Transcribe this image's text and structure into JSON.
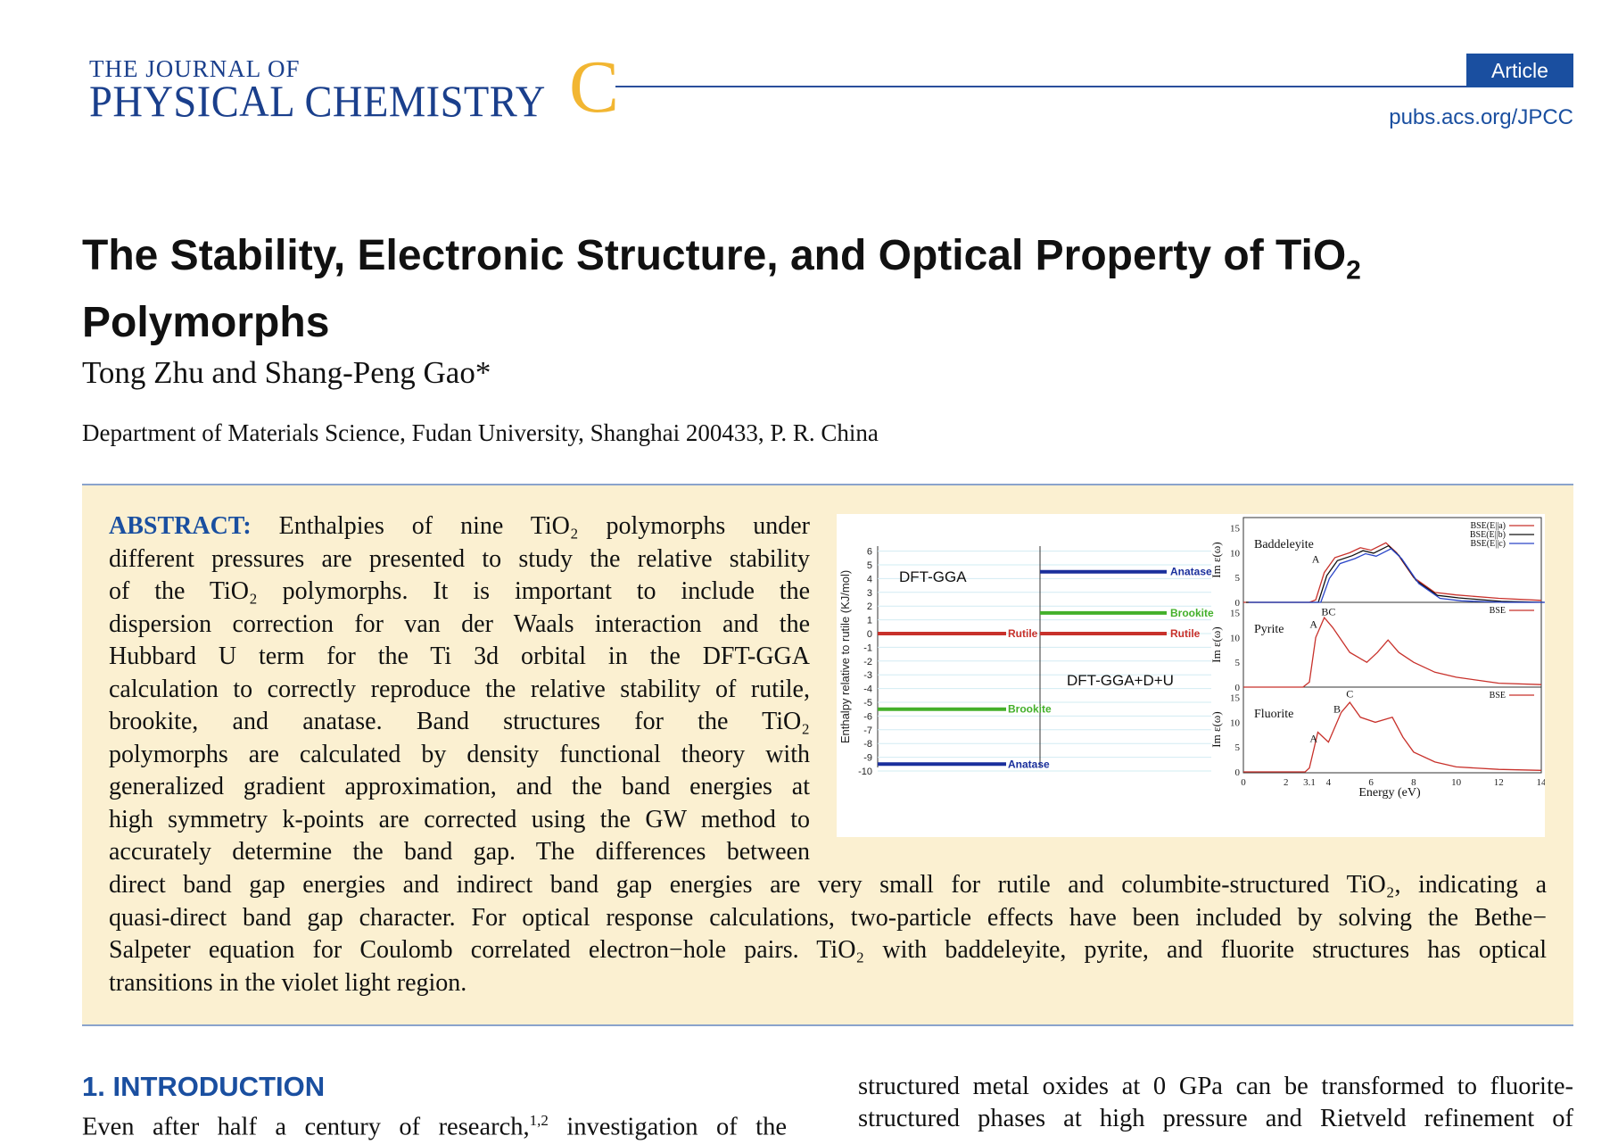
{
  "header": {
    "journal_line1": "THE JOURNAL OF",
    "journal_line2": "PHYSICAL CHEMISTRY",
    "journal_letter": "C",
    "badge": "Article",
    "url": "pubs.acs.org/JPCC",
    "colors": {
      "brand_blue": "#1a3f8c",
      "letter_gold": "#f2b632",
      "abstract_bg": "#fbf0d1"
    }
  },
  "title": {
    "line1_main": "The Stability, Electronic Structure, and Optical Property of TiO",
    "line1_sub": "2",
    "line2": "Polymorphs"
  },
  "authors": "Tong Zhu and Shang-Peng Gao*",
  "affiliation": "Department of Materials Science, Fudan University, Shanghai 200433, P. R. China",
  "abstract": {
    "lead": "ABSTRACT:",
    "narrow_lines": [
      " Enthalpies of nine TiO₂ polymorphs under",
      "different pressures are presented to study the relative stability",
      "of the TiO₂ polymorphs. It is important to include the",
      "dispersion correction for van der Waals interaction and the",
      "Hubbard U term for the Ti 3d orbital in the DFT-GGA",
      "calculation to correctly reproduce the relative stability of rutile,",
      "brookite, and anatase. Band structures for the TiO₂",
      "polymorphs are calculated by density functional theory with",
      "generalized gradient approximation, and the band energies at",
      "high symmetry k-points are corrected using the GW method to",
      "accurately determine the band gap. The differences between"
    ],
    "wide_lines": [
      "direct band gap energies and indirect band gap energies are very small for rutile and columbite-structured TiO₂, indicating a",
      "quasi-direct band gap character. For optical response calculations, two-particle effects have been included by solving the Bethe−",
      "Salpeter equation for Coulomb correlated electron−hole pairs. TiO₂ with baddeleyite, pyrite, and fluorite structures has optical",
      "transitions in the violet light region."
    ]
  },
  "figure": {
    "left_ylabel": "Enthalpy relative to rutile (KJ/mol)",
    "left_yticks": [
      "6",
      "5",
      "4",
      "3",
      "2",
      "1",
      "0",
      "-1",
      "-2",
      "-3",
      "-4",
      "-5",
      "-6",
      "-7",
      "-8",
      "-9",
      "-10"
    ],
    "label_gga": "DFT-GGA",
    "label_gga_du": "DFT-GGA+D+U",
    "levels_gga": [
      {
        "name": "Rutile",
        "value": 0,
        "color": "#c8312b"
      },
      {
        "name": "Brookite",
        "value": -5.5,
        "color": "#43b02a"
      },
      {
        "name": "Anatase",
        "value": -9.5,
        "color": "#1a2f9c"
      }
    ],
    "levels_gga_du": [
      {
        "name": "Anatase",
        "value": 4.5,
        "color": "#1a2f9c"
      },
      {
        "name": "Brookite",
        "value": 1.5,
        "color": "#43b02a"
      },
      {
        "name": "Rutile",
        "value": 0,
        "color": "#c8312b"
      }
    ],
    "right_ylabel": "Im ε(ω)",
    "right_xlabel": "Energy (eV)",
    "right_xticks": [
      "0",
      "2",
      "3.1",
      "4",
      "6",
      "8",
      "10",
      "12",
      "14"
    ],
    "panels": [
      {
        "name": "Baddeleyite",
        "yticks": [
          "15",
          "10",
          "5",
          "0"
        ],
        "legend": [
          "BSE(E||a)",
          "BSE(E||b)",
          "BSE(E||c)"
        ],
        "peaks": [
          "A"
        ]
      },
      {
        "name": "Pyrite",
        "yticks": [
          "15",
          "10",
          "5",
          "0"
        ],
        "legend": [
          "BSE"
        ],
        "peaks": [
          "A",
          "BC"
        ]
      },
      {
        "name": "Fluorite",
        "yticks": [
          "15",
          "10",
          "5",
          "0"
        ],
        "legend": [
          "BSE"
        ],
        "peaks": [
          "A",
          "B",
          "C"
        ]
      }
    ]
  },
  "introduction": {
    "heading": "1. INTRODUCTION",
    "left_line": "Even after half a century of research,",
    "left_sup": "1,2",
    "left_line_end": " investigation of the",
    "right_lines": [
      "structured metal oxides at 0 GPa can be transformed to fluorite-",
      "structured phases at high pressure and Rietveld refinement of"
    ]
  }
}
